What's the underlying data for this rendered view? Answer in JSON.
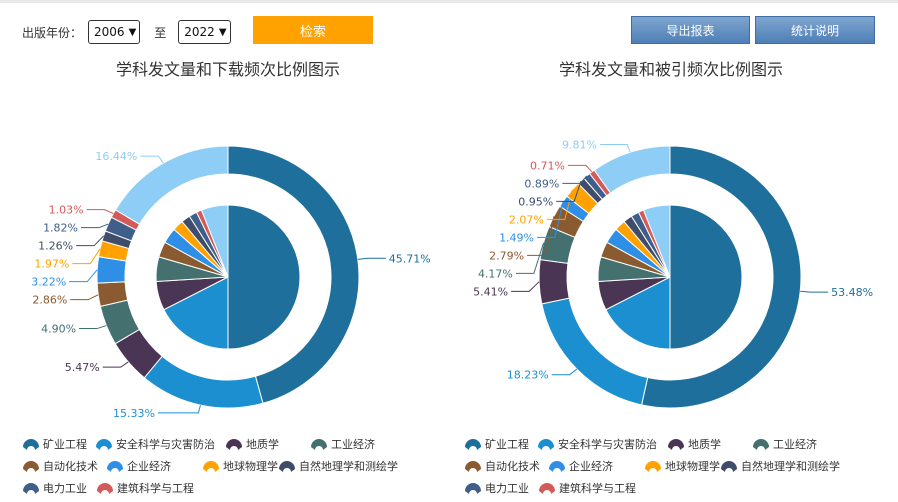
{
  "filter": {
    "label": "出版年份：",
    "start_year": "2006",
    "to_label": "至",
    "end_year": "2022",
    "search_label": "检索"
  },
  "buttons": {
    "export_label": "导出报表",
    "stats_label": "统计说明"
  },
  "colors": {
    "search": "#ffa200",
    "categories": [
      "#1e6f9c",
      "#1b8fcf",
      "#4a3654",
      "#447070",
      "#8a5a30",
      "#2f8fe6",
      "#ffa200",
      "#3f4d6a",
      "#3f5f8a",
      "#d45a5a"
    ]
  },
  "chart_data": [
    {
      "type": "pie",
      "title": "学科发文量和下载频次比例图示",
      "categories": [
        "矿业工程",
        "安全科学与灾害防治",
        "地质学",
        "工业经济",
        "自动化技术",
        "企业经济",
        "地球物理学",
        "自然地理学和测绘学",
        "电力工业",
        "建筑科学与工程"
      ],
      "inner_series": {
        "values": [
          50.0,
          17.5,
          6.5,
          5.5,
          3.5,
          3.5,
          2.5,
          2.0,
          1.8,
          1.2,
          6.0
        ]
      },
      "outer_series": {
        "values": [
          45.71,
          15.33,
          5.47,
          4.9,
          2.86,
          3.22,
          1.97,
          1.26,
          1.82,
          1.03,
          16.44
        ]
      },
      "outer_labels": [
        "45.71%",
        "15.33%",
        "5.47%",
        "4.90%",
        "2.86%",
        "3.22%",
        "1.97%",
        "1.26%",
        "1.82%",
        "1.03%",
        "16.44%"
      ],
      "extra_color": "#8ecdf6"
    },
    {
      "type": "pie",
      "title": "学科发文量和被引频次比例图示",
      "categories": [
        "矿业工程",
        "安全科学与灾害防治",
        "地质学",
        "工业经济",
        "自动化技术",
        "企业经济",
        "地球物理学",
        "自然地理学和测绘学",
        "电力工业",
        "建筑科学与工程"
      ],
      "inner_series": {
        "values": [
          50.0,
          17.5,
          6.5,
          5.5,
          3.5,
          3.5,
          2.5,
          2.0,
          1.8,
          1.2,
          6.0
        ]
      },
      "outer_series": {
        "values": [
          53.48,
          18.23,
          5.41,
          4.17,
          2.79,
          1.49,
          2.07,
          0.95,
          0.89,
          0.71,
          9.81
        ]
      },
      "outer_labels": [
        "53.48%",
        "18.23%",
        "5.41%",
        "4.17%",
        "2.79%",
        "1.49%",
        "2.07%",
        "0.95%",
        "0.89%",
        "0.71%",
        "9.81%"
      ],
      "extra_color": "#8ecdf6"
    }
  ]
}
